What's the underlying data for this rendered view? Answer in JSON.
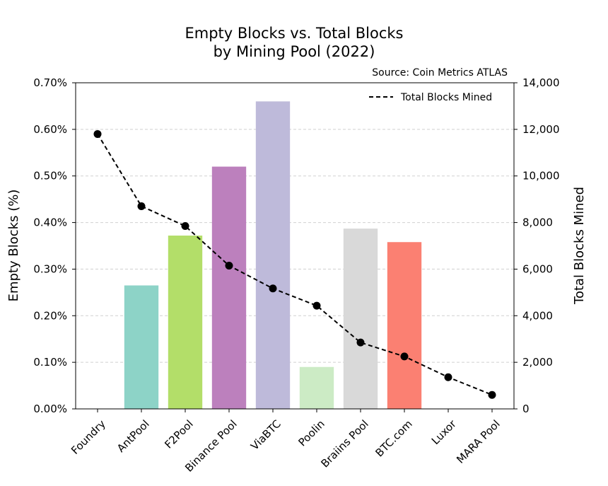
{
  "chart_data": {
    "type": "bar",
    "title_line1": "Empty Blocks vs. Total Blocks",
    "title_line2": "by Mining Pool (2022)",
    "source": "Source: Coin Metrics ATLAS",
    "ylabel_left": "Empty Blocks (%)",
    "ylabel_right": "Total Blocks Mined",
    "ylim_left": [
      0,
      0.7
    ],
    "ylim_right": [
      0,
      14000
    ],
    "left_ticks": [
      0,
      0.1,
      0.2,
      0.3,
      0.4,
      0.5,
      0.6,
      0.7
    ],
    "left_tick_labels": [
      "0.00%",
      "0.10%",
      "0.20%",
      "0.30%",
      "0.40%",
      "0.50%",
      "0.60%",
      "0.70%"
    ],
    "right_ticks": [
      0,
      2000,
      4000,
      6000,
      8000,
      10000,
      12000,
      14000
    ],
    "right_tick_labels": [
      "0",
      "2,000",
      "4,000",
      "6,000",
      "8,000",
      "10,000",
      "12,000",
      "14,000"
    ],
    "grid": true,
    "legend_position": "top-right",
    "categories": [
      "Foundry",
      "AntPool",
      "F2Pool",
      "Binance Pool",
      "ViaBTC",
      "Poolin",
      "Braiins Pool",
      "BTC.com",
      "Luxor",
      "MARA Pool"
    ],
    "series": [
      {
        "type": "bar",
        "axis": "left",
        "values": [
          0,
          0.265,
          0.372,
          0.52,
          0.66,
          0.09,
          0.387,
          0.358,
          0,
          0
        ],
        "colors": [
          "#8dd3c7",
          "#8dd3c7",
          "#b3de69",
          "#bc80bd",
          "#bebada",
          "#ccebc5",
          "#d9d9d9",
          "#fb8072",
          "#ffed6f",
          "#80b1d3"
        ]
      },
      {
        "type": "line",
        "axis": "right",
        "name": "Total Blocks Mined",
        "values": [
          11800,
          8700,
          7850,
          6150,
          5170,
          4430,
          2850,
          2250,
          1360,
          600
        ],
        "color": "#000000"
      }
    ]
  }
}
